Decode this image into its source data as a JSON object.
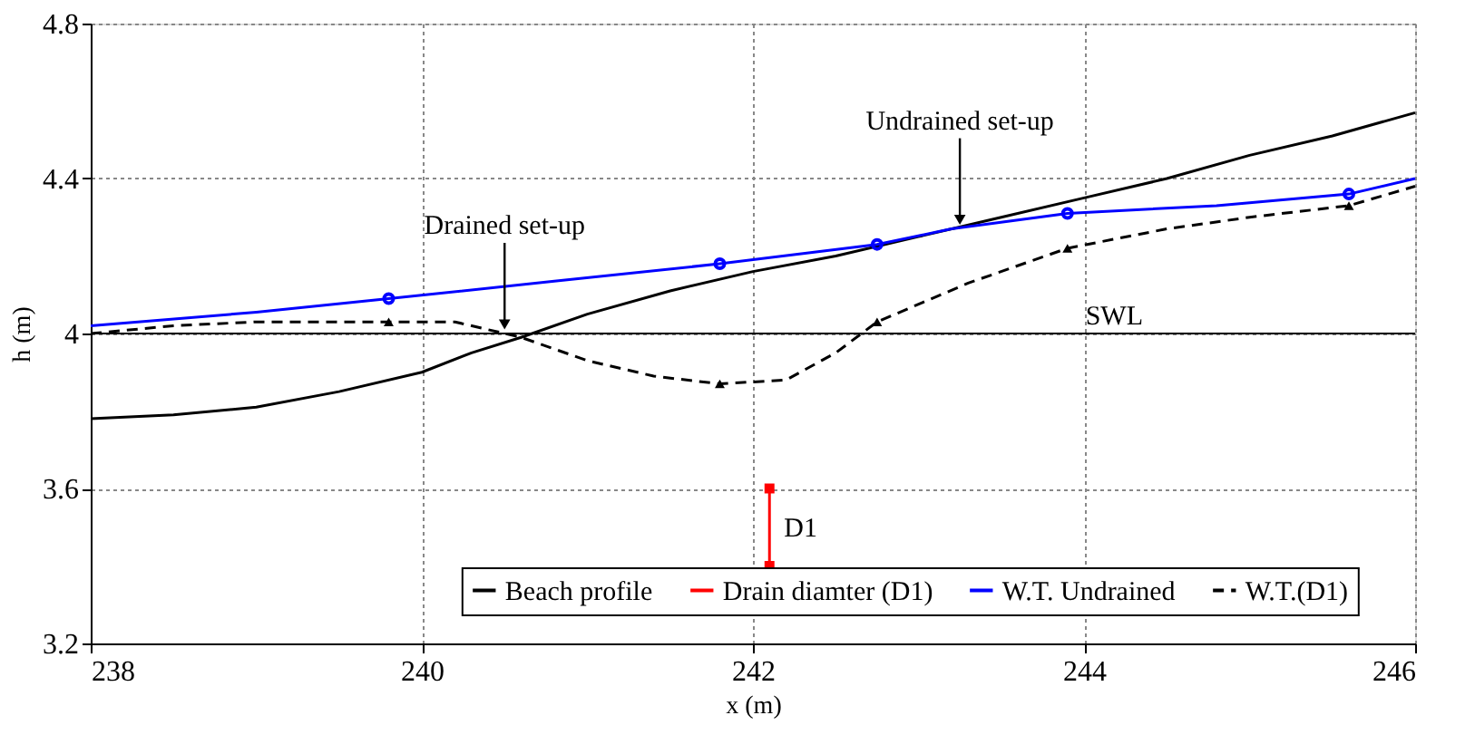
{
  "chart_data": {
    "type": "line",
    "xlabel": "x (m)",
    "ylabel": "h (m)",
    "xlim": [
      238,
      246
    ],
    "ylim": [
      3.2,
      4.8
    ],
    "xticks": [
      238,
      240,
      242,
      244,
      246
    ],
    "yticks": [
      3.2,
      3.6,
      4,
      4.4,
      4.8
    ],
    "grid": true,
    "legend": "bottom",
    "series": [
      {
        "name": "Beach profile",
        "color": "#000000",
        "line_style": "solid",
        "marker": "none",
        "x": [
          238,
          238.5,
          239,
          239.5,
          240,
          240.3,
          240.6,
          241,
          241.5,
          242,
          242.5,
          243,
          243.5,
          244,
          244.5,
          245,
          245.5,
          246
        ],
        "values": [
          3.78,
          3.79,
          3.81,
          3.85,
          3.9,
          3.95,
          3.99,
          4.05,
          4.11,
          4.16,
          4.2,
          4.25,
          4.3,
          4.35,
          4.4,
          4.46,
          4.51,
          4.57
        ]
      },
      {
        "name": "Drain diamter (D1)",
        "color": "#ff0000",
        "line_style": "solid",
        "marker": "square",
        "x": [
          242.1,
          242.1
        ],
        "values": [
          3.6,
          3.4
        ]
      },
      {
        "name": "W.T. Undrained",
        "color": "#0000ff",
        "line_style": "solid",
        "marker": "none",
        "x": [
          238,
          239,
          239.8,
          240.8,
          241.8,
          242.75,
          243.2,
          243.9,
          244.8,
          245.6,
          246
        ],
        "values": [
          4.02,
          4.055,
          4.09,
          4.135,
          4.18,
          4.23,
          4.27,
          4.31,
          4.33,
          4.36,
          4.4
        ]
      },
      {
        "name": "W.T.(D1)",
        "color": "#000000",
        "line_style": "dashed",
        "marker": "none",
        "x": [
          238,
          238.5,
          239,
          239.8,
          240.2,
          240.6,
          241,
          241.4,
          241.8,
          242.2,
          242.5,
          242.75,
          243.3,
          243.9,
          244.5,
          245,
          245.6,
          246
        ],
        "values": [
          4.0,
          4.02,
          4.03,
          4.03,
          4.03,
          3.99,
          3.93,
          3.89,
          3.87,
          3.88,
          3.95,
          4.03,
          4.13,
          4.22,
          4.27,
          4.3,
          4.33,
          4.38
        ]
      },
      {
        "type": "scatter",
        "color": "#0000ff",
        "marker": "circle",
        "x": [
          239.8,
          241.8,
          242.75,
          243.9,
          245.6
        ],
        "values": [
          4.09,
          4.18,
          4.23,
          4.31,
          4.36
        ]
      },
      {
        "type": "scatter",
        "color": "#000000",
        "marker": "triangle",
        "x": [
          239.8,
          241.8,
          242.75,
          243.9,
          245.6
        ],
        "values": [
          4.03,
          3.87,
          4.03,
          4.22,
          4.33
        ]
      }
    ],
    "ref_lines": [
      {
        "axis": "y",
        "value": 4,
        "label": "SWL",
        "color": "#000000",
        "line_style": "solid"
      }
    ],
    "annotations": [
      {
        "text": "Drained set-up",
        "x": 240.5,
        "y": 4.0
      },
      {
        "text": "Undrained set-up",
        "x": 243.25,
        "y": 4.27
      },
      {
        "text": "D1",
        "x": 242.1,
        "y": 3.5
      }
    ]
  }
}
